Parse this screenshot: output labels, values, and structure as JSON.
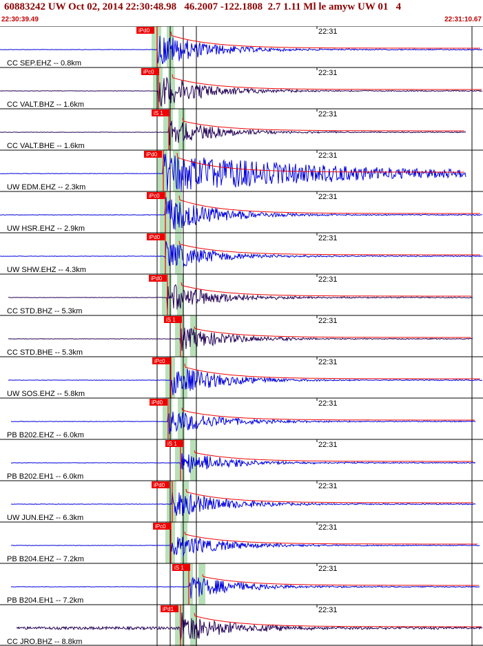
{
  "header": {
    "title": "60883242 UW Oct 02, 2014 22:30:48.98   46.2007 -122.1808  2.7 1.11 Ml le amyw UW 01   4",
    "start_time": "22:30:39.49",
    "end_time": "22:31:10.67"
  },
  "time_mark": "22:31",
  "colors": {
    "title": "#8b0000",
    "trace_blue": "#0000dd",
    "trace_dark": "#220055",
    "pick": "#ee0000",
    "window": "#b8e0b8",
    "grid": "#000000"
  },
  "traces": [
    {
      "label": "CC SEP.EHZ -- 0.8km",
      "pick": "iPd0",
      "color": "blue"
    },
    {
      "label": "CC VALT.BHZ -- 1.6km",
      "pick": "iPc0",
      "color": "dark"
    },
    {
      "label": "CC VALT.BHE -- 1.6km",
      "pick": "iS 1",
      "color": "dark"
    },
    {
      "label": "UW EDM.EHZ -- 2.3km",
      "pick": "iPd0",
      "color": "blue"
    },
    {
      "label": "UW HSR.EHZ -- 2.9km",
      "pick": "iPc0",
      "color": "blue"
    },
    {
      "label": "UW SHW.EHZ -- 4.3km",
      "pick": "iPd0",
      "color": "blue"
    },
    {
      "label": "CC STD.BHZ -- 5.3km",
      "pick": "iPd0",
      "color": "dark"
    },
    {
      "label": "CC STD.BHE -- 5.3km",
      "pick": "iS 1",
      "color": "dark"
    },
    {
      "label": "UW SOS.EHZ -- 5.8km",
      "pick": "iPc0",
      "color": "blue"
    },
    {
      "label": "PB B202.EHZ -- 6.0km",
      "pick": "iPd0",
      "color": "blue"
    },
    {
      "label": "PB B202.EH1 -- 6.0km",
      "pick": "iS 1",
      "color": "blue"
    },
    {
      "label": "UW JUN.EHZ -- 6.3km",
      "pick": "iPd0",
      "color": "blue"
    },
    {
      "label": "PB B204.EHZ -- 7.2km",
      "pick": "iPc0",
      "color": "blue"
    },
    {
      "label": "PB B204.EH1 -- 7.2km",
      "pick": "iS 1",
      "color": "blue"
    },
    {
      "label": "CC JRO.BHZ -- 8.8km",
      "pick": "iPd1",
      "color": "dark"
    }
  ]
}
